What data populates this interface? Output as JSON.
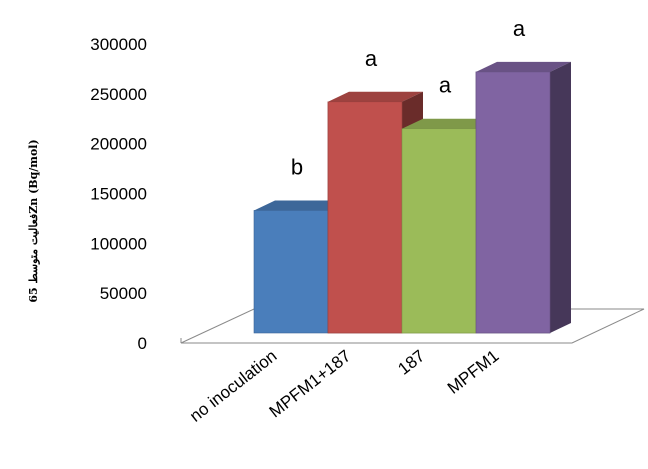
{
  "chart_data": {
    "type": "bar",
    "title": "",
    "xlabel": "",
    "ylabel": "فعالیت متوسط 65Zn (Bq/mol)",
    "ylim": [
      0,
      300000
    ],
    "y_ticks": [
      0,
      50000,
      100000,
      150000,
      200000,
      250000,
      300000
    ],
    "y_tick_labels": [
      "0",
      "50000",
      "100000",
      "150000",
      "200000",
      "250000",
      "300000"
    ],
    "categories": [
      "no inoculation",
      "MPFM1+187",
      "187",
      "MPFM1"
    ],
    "values": [
      133000,
      242000,
      215000,
      272000
    ],
    "significance": [
      "b",
      "a",
      "a",
      "a"
    ],
    "colors": [
      "#4a7ebb",
      "#c0504d",
      "#9bbb59",
      "#8064a2"
    ],
    "style": "3d-clustered-column",
    "grid": false,
    "legend": "none"
  }
}
